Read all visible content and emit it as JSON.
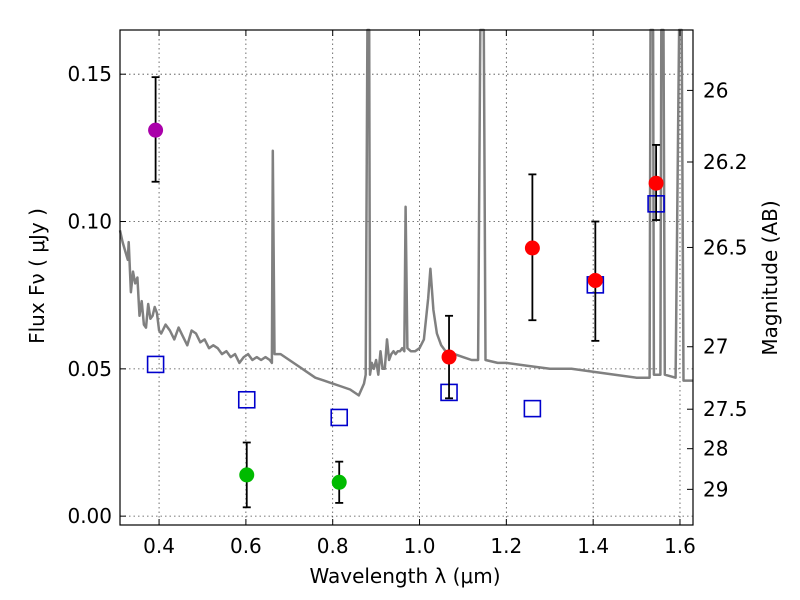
{
  "chart_data": {
    "type": "scatter",
    "xlabel": "Wavelength  λ (μm)",
    "ylabel_left": "Flux  Fν  ( μJy )",
    "ylabel_right": "Magnitude (AB)",
    "xlim": [
      0.31,
      1.63
    ],
    "ylim": [
      -0.003,
      0.165
    ],
    "x_ticks": [
      0.4,
      0.6,
      0.8,
      1.0,
      1.2,
      1.4,
      1.6
    ],
    "x_tick_labels": [
      "0.4",
      "0.6",
      "0.8",
      "1.0",
      "1.2",
      "1.4",
      "1.6"
    ],
    "y_ticks": [
      0.0,
      0.05,
      0.1,
      0.15
    ],
    "y_tick_labels": [
      "0.00",
      "0.05",
      "0.10",
      "0.15"
    ],
    "mag_ticks": [
      {
        "label": "26",
        "flux": 0.1445
      },
      {
        "label": "26.2",
        "flux": 0.1202
      },
      {
        "label": "26.5",
        "flux": 0.0912
      },
      {
        "label": "27",
        "flux": 0.0575
      },
      {
        "label": "27.5",
        "flux": 0.0363
      },
      {
        "label": "28",
        "flux": 0.0229
      },
      {
        "label": "29",
        "flux": 0.0091
      }
    ],
    "grid": true,
    "observed": [
      {
        "x": 0.392,
        "y": 0.131,
        "yerr_low": 0.0175,
        "yerr_high": 0.018,
        "color": "#aa00aa"
      },
      {
        "x": 0.602,
        "y": 0.014,
        "yerr_low": 0.011,
        "yerr_high": 0.011,
        "color": "#00bb00"
      },
      {
        "x": 0.815,
        "y": 0.0115,
        "yerr_low": 0.007,
        "yerr_high": 0.007,
        "color": "#00bb00"
      },
      {
        "x": 1.068,
        "y": 0.054,
        "yerr_low": 0.014,
        "yerr_high": 0.014,
        "color": "#ff0000"
      },
      {
        "x": 1.26,
        "y": 0.091,
        "yerr_low": 0.0245,
        "yerr_high": 0.025,
        "color": "#ff0000"
      },
      {
        "x": 1.405,
        "y": 0.08,
        "yerr_low": 0.0205,
        "yerr_high": 0.02,
        "color": "#ff0000"
      },
      {
        "x": 1.545,
        "y": 0.113,
        "yerr_low": 0.0125,
        "yerr_high": 0.013,
        "color": "#ff0000"
      }
    ],
    "model_points": [
      {
        "x": 0.392,
        "y": 0.0515
      },
      {
        "x": 0.602,
        "y": 0.0395
      },
      {
        "x": 0.815,
        "y": 0.0335
      },
      {
        "x": 1.068,
        "y": 0.042
      },
      {
        "x": 1.26,
        "y": 0.0365
      },
      {
        "x": 1.405,
        "y": 0.0785
      },
      {
        "x": 1.545,
        "y": 0.106
      }
    ],
    "spectrum": [
      [
        0.31,
        0.097
      ],
      [
        0.316,
        0.093
      ],
      [
        0.322,
        0.09
      ],
      [
        0.328,
        0.087
      ],
      [
        0.33,
        0.093
      ],
      [
        0.335,
        0.076
      ],
      [
        0.34,
        0.083
      ],
      [
        0.345,
        0.079
      ],
      [
        0.35,
        0.081
      ],
      [
        0.355,
        0.068
      ],
      [
        0.36,
        0.073
      ],
      [
        0.365,
        0.065
      ],
      [
        0.37,
        0.064
      ],
      [
        0.375,
        0.072
      ],
      [
        0.38,
        0.067
      ],
      [
        0.385,
        0.068
      ],
      [
        0.39,
        0.071
      ],
      [
        0.395,
        0.069
      ],
      [
        0.4,
        0.063
      ],
      [
        0.405,
        0.062
      ],
      [
        0.415,
        0.065
      ],
      [
        0.425,
        0.063
      ],
      [
        0.435,
        0.06
      ],
      [
        0.445,
        0.064
      ],
      [
        0.455,
        0.061
      ],
      [
        0.465,
        0.058
      ],
      [
        0.475,
        0.063
      ],
      [
        0.485,
        0.062
      ],
      [
        0.495,
        0.059
      ],
      [
        0.505,
        0.06
      ],
      [
        0.515,
        0.057
      ],
      [
        0.525,
        0.058
      ],
      [
        0.535,
        0.057
      ],
      [
        0.545,
        0.055
      ],
      [
        0.555,
        0.056
      ],
      [
        0.565,
        0.054
      ],
      [
        0.575,
        0.055
      ],
      [
        0.585,
        0.052
      ],
      [
        0.595,
        0.054
      ],
      [
        0.605,
        0.055
      ],
      [
        0.615,
        0.053
      ],
      [
        0.625,
        0.054
      ],
      [
        0.635,
        0.053
      ],
      [
        0.645,
        0.054
      ],
      [
        0.655,
        0.053
      ],
      [
        0.66,
        0.052
      ],
      [
        0.662,
        0.124
      ],
      [
        0.666,
        0.055
      ],
      [
        0.68,
        0.055
      ],
      [
        0.7,
        0.053
      ],
      [
        0.72,
        0.051
      ],
      [
        0.74,
        0.049
      ],
      [
        0.76,
        0.047
      ],
      [
        0.78,
        0.046
      ],
      [
        0.8,
        0.045
      ],
      [
        0.82,
        0.044
      ],
      [
        0.84,
        0.043
      ],
      [
        0.86,
        0.041
      ],
      [
        0.872,
        0.045
      ],
      [
        0.876,
        0.048
      ],
      [
        0.88,
        0.165
      ],
      [
        0.884,
        0.165
      ],
      [
        0.886,
        0.048
      ],
      [
        0.89,
        0.052
      ],
      [
        0.895,
        0.05
      ],
      [
        0.9,
        0.053
      ],
      [
        0.905,
        0.048
      ],
      [
        0.91,
        0.056
      ],
      [
        0.915,
        0.05
      ],
      [
        0.92,
        0.05
      ],
      [
        0.925,
        0.06
      ],
      [
        0.93,
        0.053
      ],
      [
        0.935,
        0.055
      ],
      [
        0.94,
        0.056
      ],
      [
        0.945,
        0.055
      ],
      [
        0.95,
        0.056
      ],
      [
        0.955,
        0.056
      ],
      [
        0.96,
        0.057
      ],
      [
        0.965,
        0.056
      ],
      [
        0.968,
        0.105
      ],
      [
        0.972,
        0.057
      ],
      [
        0.98,
        0.056
      ],
      [
        0.99,
        0.056
      ],
      [
        1.0,
        0.057
      ],
      [
        1.01,
        0.06
      ],
      [
        1.02,
        0.074
      ],
      [
        1.025,
        0.084
      ],
      [
        1.032,
        0.07
      ],
      [
        1.04,
        0.062
      ],
      [
        1.05,
        0.058
      ],
      [
        1.06,
        0.056
      ],
      [
        1.07,
        0.056
      ],
      [
        1.08,
        0.055
      ],
      [
        1.1,
        0.054
      ],
      [
        1.12,
        0.053
      ],
      [
        1.135,
        0.053
      ],
      [
        1.14,
        0.165
      ],
      [
        1.148,
        0.165
      ],
      [
        1.152,
        0.053
      ],
      [
        1.18,
        0.052
      ],
      [
        1.2,
        0.052
      ],
      [
        1.25,
        0.051
      ],
      [
        1.3,
        0.05
      ],
      [
        1.35,
        0.05
      ],
      [
        1.4,
        0.049
      ],
      [
        1.45,
        0.048
      ],
      [
        1.5,
        0.047
      ],
      [
        1.53,
        0.047
      ],
      [
        1.532,
        0.165
      ],
      [
        1.538,
        0.165
      ],
      [
        1.54,
        0.048
      ],
      [
        1.55,
        0.048
      ],
      [
        1.555,
        0.048
      ],
      [
        1.557,
        0.165
      ],
      [
        1.562,
        0.165
      ],
      [
        1.565,
        0.048
      ],
      [
        1.59,
        0.047
      ],
      [
        1.598,
        0.165
      ],
      [
        1.604,
        0.165
      ],
      [
        1.608,
        0.046
      ],
      [
        1.63,
        0.046
      ]
    ],
    "colors": {
      "spectrum": "#808080",
      "model_marker": "#0000cc",
      "errorbar": "#000000"
    }
  }
}
